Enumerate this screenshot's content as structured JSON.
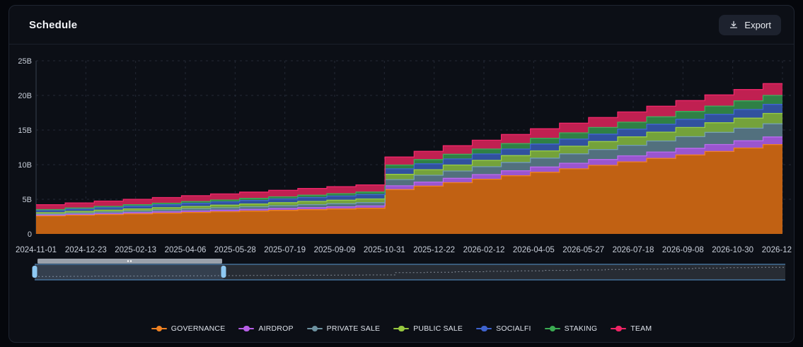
{
  "header": {
    "title": "Schedule",
    "export_label": "Export"
  },
  "ui": {
    "page_bg": "#05070c",
    "card_bg": "#0c0f16",
    "card_border": "#1f2531",
    "grid_color": "#232936",
    "axis_line_color": "#39404e",
    "tick_text_color": "#c9cfda",
    "brush_border": "#4d7fae",
    "brush_track_fill": "#272c34",
    "brush_selection_fill": "rgba(124,170,220,0.16)",
    "brush_handle_color": "#8ec9f3",
    "brush_scrollbar_color": "#9aa1ab",
    "brush_line_color": "#828a96"
  },
  "chart_data": {
    "type": "area",
    "stacked": true,
    "step": true,
    "title": "Schedule",
    "xlabel": "",
    "ylabel": "",
    "unit": "B",
    "ylim": [
      0,
      25
    ],
    "grid": true,
    "legend_position": "bottom",
    "x_start": "2024-11-01",
    "x_interval": "monthly",
    "x_tick_labels": [
      "2024-11-01",
      "2024-12-23",
      "2025-02-13",
      "2025-04-06",
      "2025-05-28",
      "2025-07-19",
      "2025-09-09",
      "2025-10-31",
      "2025-12-22",
      "2026-02-12",
      "2026-04-05",
      "2026-05-27",
      "2026-07-18",
      "2026-09-08",
      "2026-10-30",
      "2026-12"
    ],
    "y_tick_labels": [
      "0",
      "5B",
      "10B",
      "15B",
      "20B",
      "25B"
    ],
    "series": [
      {
        "name": "GOVERNANCE",
        "legend": "#f08222",
        "fill": "#c16113",
        "stroke": "#f08222",
        "values": [
          2.6,
          2.7,
          2.8,
          2.9,
          3.0,
          3.1,
          3.2,
          3.3,
          3.4,
          3.5,
          3.6,
          3.7,
          6.4,
          6.9,
          7.4,
          7.9,
          8.4,
          8.9,
          9.4,
          9.9,
          10.4,
          10.9,
          11.4,
          11.9,
          12.4,
          12.9
        ]
      },
      {
        "name": "AIRDROP",
        "legend": "#b75fe6",
        "fill": "#9a55cf",
        "stroke": "#bb6bf0",
        "values": [
          0.12,
          0.14,
          0.16,
          0.18,
          0.2,
          0.22,
          0.24,
          0.26,
          0.28,
          0.3,
          0.32,
          0.34,
          0.55,
          0.59,
          0.63,
          0.67,
          0.72,
          0.76,
          0.8,
          0.84,
          0.88,
          0.93,
          0.97,
          1.01,
          1.05,
          1.1
        ]
      },
      {
        "name": "PRIVATE SALE",
        "legend": "#6d92a0",
        "fill": "#52707e",
        "stroke": "#73a0b2",
        "values": [
          0.15,
          0.18,
          0.21,
          0.24,
          0.27,
          0.3,
          0.33,
          0.36,
          0.39,
          0.42,
          0.45,
          0.48,
          0.9,
          0.98,
          1.05,
          1.13,
          1.21,
          1.29,
          1.36,
          1.44,
          1.52,
          1.59,
          1.67,
          1.75,
          1.82,
          1.9
        ]
      },
      {
        "name": "PUBLIC SALE",
        "legend": "#97c83f",
        "fill": "#74a23b",
        "stroke": "#9ace45",
        "values": [
          0.2,
          0.23,
          0.26,
          0.29,
          0.32,
          0.35,
          0.38,
          0.41,
          0.44,
          0.47,
          0.5,
          0.53,
          0.75,
          0.81,
          0.87,
          0.92,
          0.98,
          1.04,
          1.1,
          1.16,
          1.21,
          1.27,
          1.33,
          1.39,
          1.44,
          1.5
        ]
      },
      {
        "name": "SOCIALFI",
        "legend": "#3e63cf",
        "fill": "#31519e",
        "stroke": "#4067d2",
        "values": [
          0.3,
          0.33,
          0.36,
          0.39,
          0.42,
          0.45,
          0.48,
          0.51,
          0.54,
          0.57,
          0.6,
          0.63,
          0.8,
          0.84,
          0.88,
          0.92,
          0.95,
          0.99,
          1.03,
          1.07,
          1.11,
          1.15,
          1.18,
          1.22,
          1.26,
          1.3
        ]
      },
      {
        "name": "STAKING",
        "legend": "#3bab52",
        "fill": "#2f8045",
        "stroke": "#3fae5c",
        "values": [
          0.15,
          0.17,
          0.19,
          0.21,
          0.23,
          0.25,
          0.27,
          0.29,
          0.31,
          0.33,
          0.35,
          0.37,
          0.55,
          0.61,
          0.67,
          0.72,
          0.78,
          0.84,
          0.9,
          0.96,
          1.01,
          1.07,
          1.13,
          1.19,
          1.24,
          1.3
        ]
      },
      {
        "name": "TEAM",
        "legend": "#ef2465",
        "fill": "#c02051",
        "stroke": "#f0276a",
        "values": [
          0.7,
          0.73,
          0.76,
          0.79,
          0.82,
          0.85,
          0.88,
          0.91,
          0.94,
          0.97,
          1.0,
          1.03,
          1.15,
          1.19,
          1.23,
          1.27,
          1.32,
          1.36,
          1.4,
          1.44,
          1.48,
          1.53,
          1.57,
          1.61,
          1.65,
          1.7
        ]
      }
    ]
  }
}
